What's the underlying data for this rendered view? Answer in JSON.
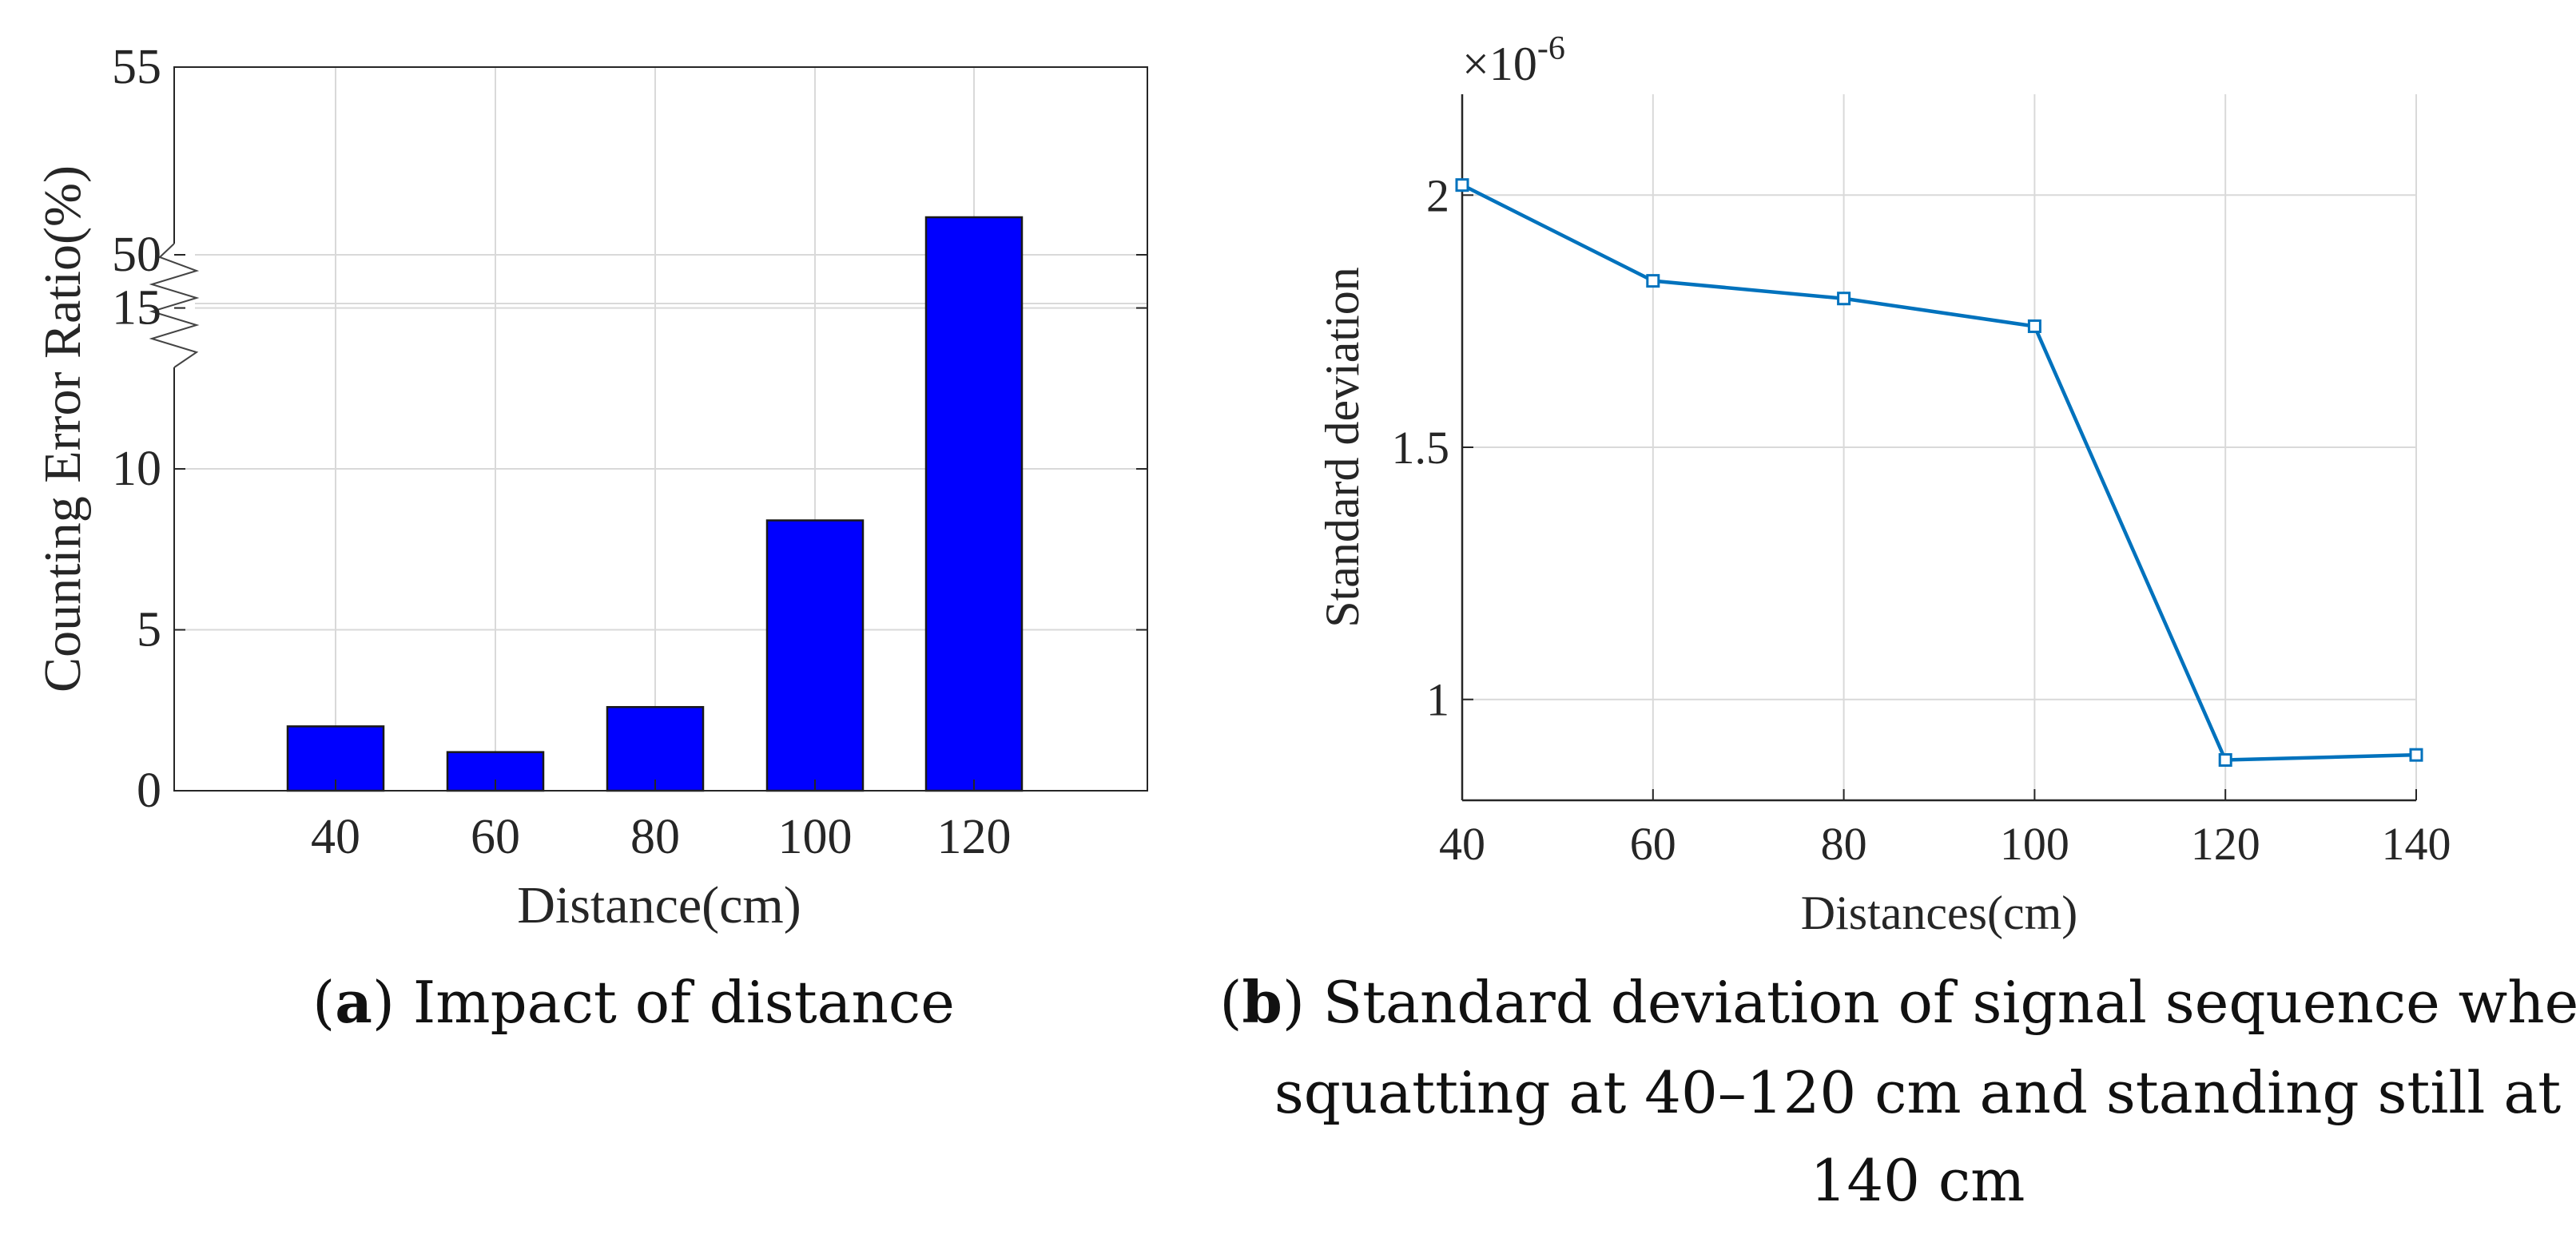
{
  "chart_data": [
    {
      "type": "bar",
      "categories": [
        "40",
        "60",
        "80",
        "100",
        "120"
      ],
      "values": [
        2.0,
        1.2,
        2.6,
        8.4,
        51.0
      ],
      "xlabel": "Distance(cm)",
      "ylabel": "Counting Error Ratio(%)",
      "y_lower_range": [
        0,
        17
      ],
      "y_upper_range": [
        47,
        55
      ],
      "axis_break": true,
      "yticks": [
        "0",
        "5",
        "10",
        "15",
        "50",
        "55"
      ],
      "bar_color": "#0000ff",
      "grid": true,
      "caption_label": "a",
      "caption_text": ") Impact of distance"
    },
    {
      "type": "line",
      "x": [
        40,
        60,
        80,
        100,
        120,
        140
      ],
      "y": [
        2.02,
        1.83,
        1.795,
        1.74,
        0.88,
        0.89
      ],
      "xticks": [
        "40",
        "60",
        "80",
        "100",
        "120",
        "140"
      ],
      "yticks": [
        "1",
        "1.5",
        "2"
      ],
      "exponent_base": "×10",
      "exponent_power": "-6",
      "xlabel": "Distances(cm)",
      "ylabel": "Standard deviation",
      "xlim": [
        40,
        140
      ],
      "ylim": [
        0.8,
        2.2
      ],
      "line_color": "#0072bd",
      "marker": "square",
      "grid": true,
      "caption_label": "b",
      "caption_lines": [
        ") Standard deviation of signal sequence when",
        "squatting at 40–120 cm and standing still at",
        "140 cm"
      ]
    }
  ]
}
